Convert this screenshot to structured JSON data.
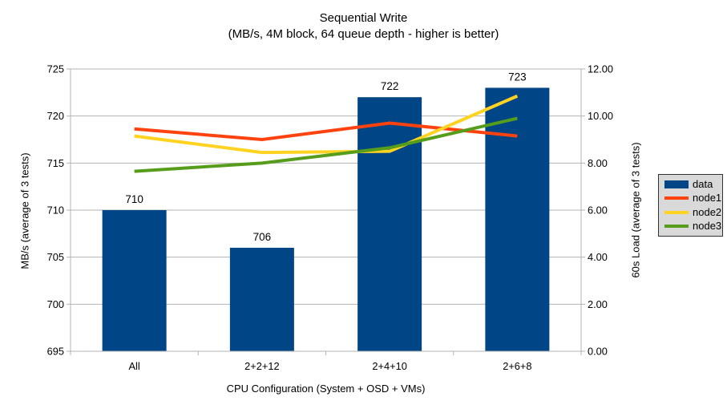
{
  "title": "Sequential Write",
  "subtitle": "(MB/s, 4M block, 64 queue depth - higher is better)",
  "colors": {
    "background": "#ffffff",
    "grid": "#b3b3b3",
    "axis": "#b3b3b3",
    "text": "#000000",
    "legend_bg": "#d9d9d9",
    "legend_border": "#333333",
    "bar": "#004586",
    "node1": "#ff420e",
    "node2": "#ffd320",
    "node3": "#579d1c"
  },
  "chart_data": {
    "type": "combo-bar-line",
    "title": "Sequential Write",
    "subtitle": "(MB/s, 4M block, 64 queue depth - higher is better)",
    "xlabel": "CPU Configuration (System + OSD + VMs)",
    "ylabel_left": "MB/s (average of 3 tests)",
    "ylabel_right": "60s Load (average of 3 tests)",
    "categories": [
      "All",
      "2+2+12",
      "2+4+10",
      "2+6+8"
    ],
    "left_axis": {
      "min": 695,
      "max": 725,
      "tick_step": 5,
      "tick_labels": [
        "695",
        "700",
        "705",
        "710",
        "715",
        "720",
        "725"
      ]
    },
    "right_axis": {
      "min": 0,
      "max": 12,
      "tick_step": 2,
      "tick_labels": [
        "0.00",
        "2.00",
        "4.00",
        "6.00",
        "8.00",
        "10.00",
        "12.00"
      ]
    },
    "bar_series": {
      "name": "data",
      "axis": "left",
      "color": "#004586",
      "values": [
        710,
        706,
        722,
        723
      ],
      "data_labels": [
        "710",
        "706",
        "722",
        "723"
      ]
    },
    "line_series": [
      {
        "name": "node1",
        "axis": "right",
        "color": "#ff420e",
        "values": [
          9.45,
          9.0,
          9.7,
          9.15
        ]
      },
      {
        "name": "node2",
        "axis": "right",
        "color": "#ffd320",
        "values": [
          9.15,
          8.45,
          8.5,
          10.85
        ]
      },
      {
        "name": "node3",
        "axis": "right",
        "color": "#579d1c",
        "values": [
          7.65,
          8.0,
          8.65,
          9.9
        ]
      }
    ],
    "legend": {
      "position": "right",
      "entries": [
        "data",
        "node1",
        "node2",
        "node3"
      ]
    },
    "grid": "horizontal"
  }
}
